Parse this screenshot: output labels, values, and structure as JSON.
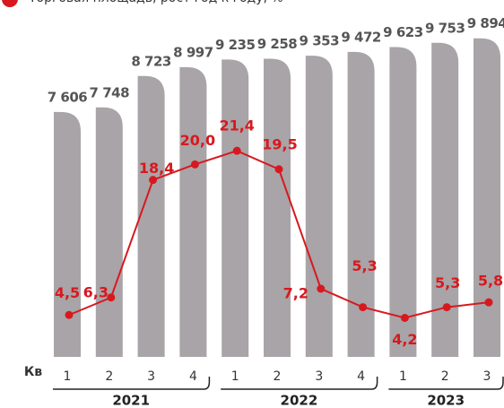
{
  "chart_data": {
    "type": "bar-line",
    "legend": "Торговая площадь, рост год к году, %",
    "axis_label": "Кв",
    "groups": [
      {
        "name": "2021",
        "quarters": [
          "1",
          "2",
          "3",
          "4"
        ]
      },
      {
        "name": "2022",
        "quarters": [
          "1",
          "2",
          "3",
          "4"
        ]
      },
      {
        "name": "2023",
        "quarters": [
          "1",
          "2",
          "3"
        ]
      }
    ],
    "ylim": [
      0,
      11000
    ],
    "y2lim": [
      0,
      36
    ],
    "series": [
      {
        "type": "bar",
        "color": "#a8a4a7",
        "values": [
          7606,
          7748,
          8723,
          8997,
          9235,
          9258,
          9353,
          9472,
          9623,
          9753,
          9894
        ],
        "value_labels": [
          "7 606",
          "7 748",
          "8 723",
          "8 997",
          "9 235",
          "9 258",
          "9 353",
          "9 472",
          "9 623",
          "9 753",
          "9 894"
        ]
      },
      {
        "type": "line",
        "name": "Торговая площадь, рост год к году, %",
        "axis": "y2",
        "color": "#d7191f",
        "values": [
          4.5,
          6.3,
          18.4,
          20.0,
          21.4,
          19.5,
          7.2,
          5.3,
          4.2,
          5.3,
          5.8
        ],
        "value_labels": [
          "4,5",
          "6,3",
          "18,4",
          "20,0",
          "21,4",
          "19,5",
          "7,2",
          "5,3",
          "4,2",
          "5,3",
          "5,8"
        ]
      }
    ]
  }
}
